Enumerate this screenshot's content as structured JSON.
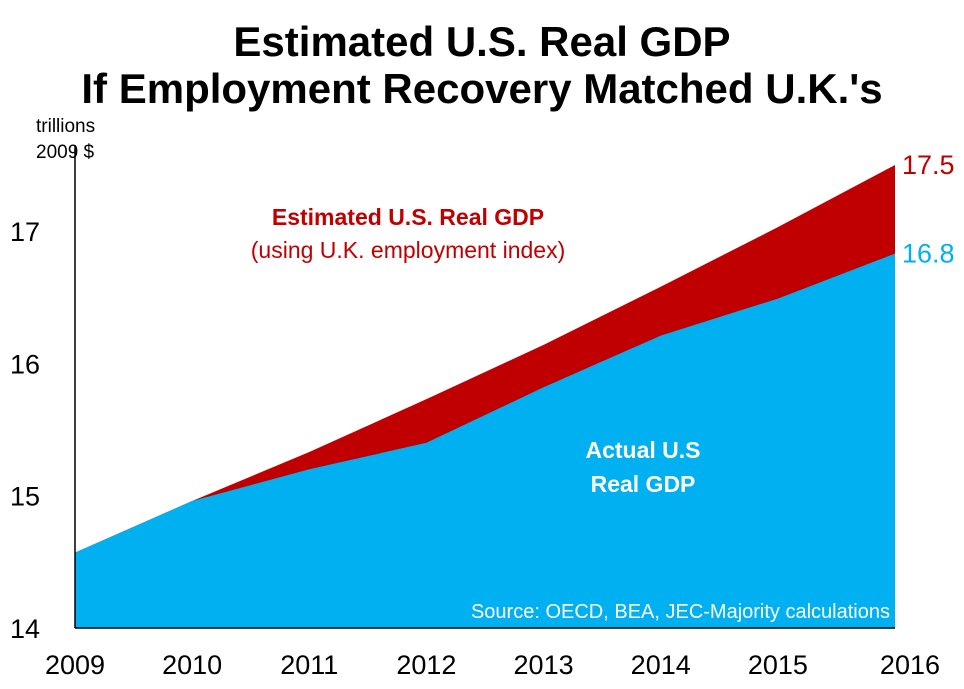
{
  "chart_data": {
    "type": "area",
    "title_lines": [
      "Estimated U.S. Real GDP",
      "If Employment Recovery Matched U.K.'s"
    ],
    "ylabel_lines": [
      "trillions",
      "2009 $"
    ],
    "x": [
      "2009",
      "2010",
      "2011",
      "2012",
      "2013",
      "2014",
      "2015",
      "2016"
    ],
    "ylim": [
      14,
      17.5
    ],
    "yticks": [
      "14",
      "15",
      "16",
      "17"
    ],
    "series": [
      {
        "name": "Estimated U.S. Real GDP (using U.K. employment index)",
        "color": "#c00000",
        "values": [
          14.57,
          14.96,
          15.33,
          15.73,
          16.14,
          16.58,
          17.03,
          17.5
        ]
      },
      {
        "name": "Actual U.S Real GDP",
        "color": "#00b0f0",
        "values": [
          14.57,
          14.96,
          15.2,
          15.4,
          15.82,
          16.21,
          16.49,
          16.83
        ]
      }
    ],
    "end_labels": [
      {
        "text": "17.5",
        "color": "#c00000"
      },
      {
        "text": "16.8",
        "color": "#00b0f0"
      }
    ],
    "annotations": {
      "estimated_bold": "Estimated U.S. Real GDP",
      "estimated_sub": "(using U.K. employment index)",
      "actual_line1": "Actual U.S",
      "actual_line2": "Real GDP"
    },
    "source": "Source: OECD, BEA, JEC-Majority calculations",
    "grid": false,
    "axis_color": "#000000",
    "estimated_label_color": "#c00000",
    "actual_label_color": "#ffffff"
  }
}
